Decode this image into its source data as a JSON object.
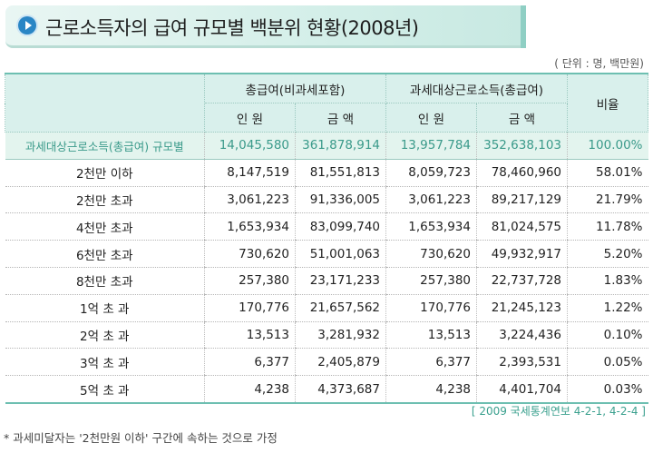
{
  "title": "근로소득자의 급여 규모별 백분위 현황(2008년)",
  "unit": "( 단위 : 명, 백만원)",
  "headers": {
    "group1": "총급여(비과세포함)",
    "group2": "과세대상근로소득(총급여)",
    "ratio": "비율",
    "people": "인 원",
    "amount": "금 액"
  },
  "total_row": [
    "과세대상근로소득(총급여) 규모별",
    "14,045,580",
    "361,878,914",
    "13,957,784",
    "352,638,103",
    "100.00%"
  ],
  "rows": [
    [
      "2천만 이하",
      "8,147,519",
      "81,551,813",
      "8,059,723",
      "78,460,960",
      "58.01%"
    ],
    [
      "2천만 초과",
      "3,061,223",
      "91,336,005",
      "3,061,223",
      "89,217,129",
      "21.79%"
    ],
    [
      "4천만 초과",
      "1,653,934",
      "83,099,740",
      "1,653,934",
      "81,024,575",
      "11.78%"
    ],
    [
      "6천만 초과",
      "730,620",
      "51,001,063",
      "730,620",
      "49,932,917",
      "5.20%"
    ],
    [
      "8천만 초과",
      "257,380",
      "23,171,233",
      "257,380",
      "22,737,728",
      "1.83%"
    ],
    [
      "1억 초 과",
      "170,776",
      "21,657,562",
      "170,776",
      "21,245,123",
      "1.22%"
    ],
    [
      "2억 초 과",
      "13,513",
      "3,281,932",
      "13,513",
      "3,224,436",
      "0.10%"
    ],
    [
      "3억 초 과",
      "6,377",
      "2,405,879",
      "6,377",
      "2,393,531",
      "0.05%"
    ],
    [
      "5억 초 과",
      "4,238",
      "4,373,687",
      "4,238",
      "4,401,704",
      "0.03%"
    ]
  ],
  "source": "[ 2009 국세통계연보 4-2-1, 4-2-4 ]",
  "footnote": "* 과세미달자는 '2천만원 이하' 구간에 속하는 것으로 가정",
  "icons": {
    "title_bullet": "play-circle-icon"
  },
  "colors": {
    "accent": "#2a86c5",
    "header_bg": "#d9f0ec",
    "total_text": "#3a9a8a"
  }
}
